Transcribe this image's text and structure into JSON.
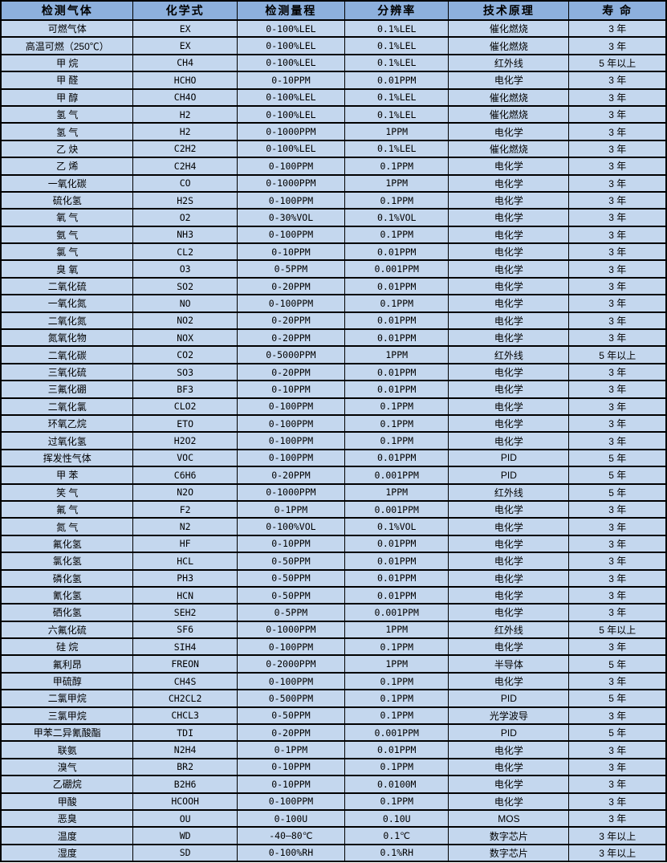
{
  "table": {
    "title": "gas-sensor-spec-table",
    "colors": {
      "header_bg": "#8db0dd",
      "row_bg": "#c4d7ee",
      "border": "#000000",
      "text": "#000000"
    },
    "headers": [
      "检测气体",
      "化学式",
      "检测量程",
      "分辨率",
      "技术原理",
      "寿 命"
    ],
    "rows": [
      [
        "可燃气体",
        "EX",
        "0-100%LEL",
        "0.1%LEL",
        "催化燃烧",
        "3 年"
      ],
      [
        "高温可燃（250℃）",
        "EX",
        "0-100%LEL",
        "0.1%LEL",
        "催化燃烧",
        "3 年"
      ],
      [
        "甲 烷",
        "CH4",
        "0-100%LEL",
        "0.1%LEL",
        "红外线",
        "5 年以上"
      ],
      [
        "甲 醛",
        "HCHO",
        "0-10PPM",
        "0.01PPM",
        "电化学",
        "3 年"
      ],
      [
        "甲 醇",
        "CH4O",
        "0-100%LEL",
        "0.1%LEL",
        "催化燃烧",
        "3 年"
      ],
      [
        "氢 气",
        "H2",
        "0-100%LEL",
        "0.1%LEL",
        "催化燃烧",
        "3 年"
      ],
      [
        "氢 气",
        "H2",
        "0-1000PPM",
        "1PPM",
        "电化学",
        "3 年"
      ],
      [
        "乙 炔",
        "C2H2",
        "0-100%LEL",
        "0.1%LEL",
        "催化燃烧",
        "3 年"
      ],
      [
        "乙 烯",
        "C2H4",
        "0-100PPM",
        "0.1PPM",
        "电化学",
        "3 年"
      ],
      [
        "一氧化碳",
        "CO",
        "0-1000PPM",
        "1PPM",
        "电化学",
        "3 年"
      ],
      [
        "硫化氢",
        "H2S",
        "0-100PPM",
        "0.1PPM",
        "电化学",
        "3 年"
      ],
      [
        "氧 气",
        "O2",
        "0-30%VOL",
        "0.1%VOL",
        "电化学",
        "3 年"
      ],
      [
        "氨 气",
        "NH3",
        "0-100PPM",
        "0.1PPM",
        "电化学",
        "3 年"
      ],
      [
        "氯 气",
        "CL2",
        "0-10PPM",
        "0.01PPM",
        "电化学",
        "3 年"
      ],
      [
        "臭 氧",
        "O3",
        "0-5PPM",
        "0.001PPM",
        "电化学",
        "3 年"
      ],
      [
        "二氧化硫",
        "SO2",
        "0-20PPM",
        "0.01PPM",
        "电化学",
        "3 年"
      ],
      [
        "一氧化氮",
        "NO",
        "0-100PPM",
        "0.1PPM",
        "电化学",
        "3 年"
      ],
      [
        "二氧化氮",
        "NO2",
        "0-20PPM",
        "0.01PPM",
        "电化学",
        "3 年"
      ],
      [
        "氮氧化物",
        "NOX",
        "0-20PPM",
        "0.01PPM",
        "电化学",
        "3 年"
      ],
      [
        "二氧化碳",
        "CO2",
        "0-5000PPM",
        "1PPM",
        "红外线",
        "5 年以上"
      ],
      [
        "三氧化硫",
        "SO3",
        "0-20PPM",
        "0.01PPM",
        "电化学",
        "3 年"
      ],
      [
        "三氟化硼",
        "BF3",
        "0-10PPM",
        "0.01PPM",
        "电化学",
        "3 年"
      ],
      [
        "二氧化氯",
        "CLO2",
        "0-100PPM",
        "0.1PPM",
        "电化学",
        "3 年"
      ],
      [
        "环氧乙烷",
        "ETO",
        "0-100PPM",
        "0.1PPM",
        "电化学",
        "3 年"
      ],
      [
        "过氧化氢",
        "H2O2",
        "0-100PPM",
        "0.1PPM",
        "电化学",
        "3 年"
      ],
      [
        "挥发性气体",
        "VOC",
        "0-100PPM",
        "0.01PPM",
        "PID",
        "5 年"
      ],
      [
        "甲 苯",
        "C6H6",
        "0-20PPM",
        "0.001PPM",
        "PID",
        "5 年"
      ],
      [
        "笑 气",
        "N2O",
        "0-1000PPM",
        "1PPM",
        "红外线",
        "5 年"
      ],
      [
        "氟 气",
        "F2",
        "0-1PPM",
        "0.001PPM",
        "电化学",
        "3 年"
      ],
      [
        "氮 气",
        "N2",
        "0-100%VOL",
        "0.1%VOL",
        "电化学",
        "3 年"
      ],
      [
        "氟化氢",
        "HF",
        "0-10PPM",
        "0.01PPM",
        "电化学",
        "3 年"
      ],
      [
        "氯化氢",
        "HCL",
        "0-50PPM",
        "0.01PPM",
        "电化学",
        "3 年"
      ],
      [
        "磷化氢",
        "PH3",
        "0-50PPM",
        "0.01PPM",
        "电化学",
        "3 年"
      ],
      [
        "氰化氢",
        "HCN",
        "0-50PPM",
        "0.01PPM",
        "电化学",
        "3 年"
      ],
      [
        "硒化氢",
        "SEH2",
        "0-5PPM",
        "0.001PPM",
        "电化学",
        "3 年"
      ],
      [
        "六氟化硫",
        "SF6",
        "0-1000PPM",
        "1PPM",
        "红外线",
        "5 年以上"
      ],
      [
        "硅 烷",
        "SIH4",
        "0-100PPM",
        "0.1PPM",
        "电化学",
        "3 年"
      ],
      [
        "氟利昂",
        "FREON",
        "0-2000PPM",
        "1PPM",
        "半导体",
        "5 年"
      ],
      [
        "甲硫醇",
        "CH4S",
        "0-100PPM",
        "0.1PPM",
        "电化学",
        "3 年"
      ],
      [
        "二氯甲烷",
        "CH2CL2",
        "0-500PPM",
        "0.1PPM",
        "PID",
        "5 年"
      ],
      [
        "三氯甲烷",
        "CHCL3",
        "0-50PPM",
        "0.1PPM",
        "光学波导",
        "3 年"
      ],
      [
        "甲苯二异氰酸酯",
        "TDI",
        "0-20PPM",
        "0.001PPM",
        "PID",
        "5 年"
      ],
      [
        "联氨",
        "N2H4",
        "0-1PPM",
        "0.01PPM",
        "电化学",
        "3 年"
      ],
      [
        "溴气",
        "BR2",
        "0-10PPM",
        "0.1PPM",
        "电化学",
        "3 年"
      ],
      [
        "乙硼烷",
        "B2H6",
        "0-10PPM",
        "0.0100M",
        "电化学",
        "3 年"
      ],
      [
        "甲酸",
        "HCOOH",
        "0-100PPM",
        "0.1PPM",
        "电化学",
        "3 年"
      ],
      [
        "恶臭",
        "OU",
        "0-100U",
        "0.10U",
        "MOS",
        "3 年"
      ],
      [
        "温度",
        "WD",
        "-40—80℃",
        "0.1℃",
        "数字芯片",
        "3 年以上"
      ],
      [
        "湿度",
        "SD",
        "0-100%RH",
        "0.1%RH",
        "数字芯片",
        "3 年以上"
      ]
    ]
  }
}
